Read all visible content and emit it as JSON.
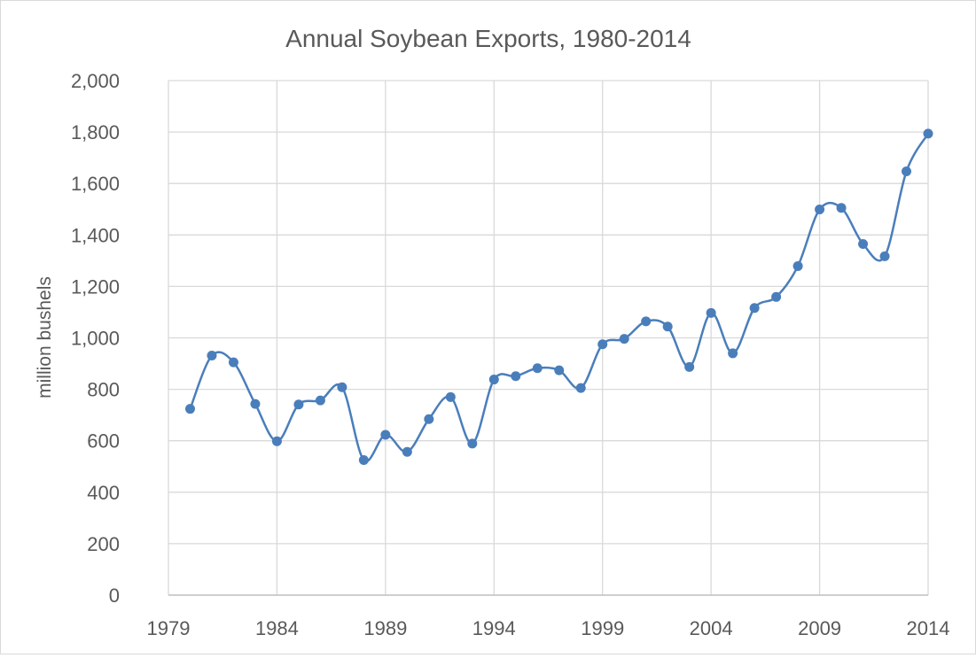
{
  "chart_data": {
    "type": "line",
    "title": "Annual Soybean Exports, 1980-2014",
    "xlabel": "",
    "ylabel": "million bushels",
    "xlim": [
      1979,
      2014
    ],
    "ylim": [
      0,
      2000
    ],
    "x_ticks": [
      "1979",
      "1984",
      "1989",
      "1994",
      "1999",
      "2004",
      "2009",
      "2014"
    ],
    "y_ticks": [
      "0",
      "200",
      "400",
      "600",
      "800",
      "1,000",
      "1,200",
      "1,400",
      "1,600",
      "1,800",
      "2,000"
    ],
    "grid": true,
    "smoothed": true,
    "marker": "circle",
    "color": "#4a7ebb",
    "series": [
      {
        "x": [
          1980,
          1981,
          1982,
          1983,
          1984,
          1985,
          1986,
          1987,
          1988,
          1989,
          1990,
          1991,
          1992,
          1993,
          1994,
          1995,
          1996,
          1997,
          1998,
          1999,
          2000,
          2001,
          2002,
          2003,
          2004,
          2005,
          2006,
          2007,
          2008,
          2009,
          2010,
          2011,
          2012,
          2013,
          2014
        ],
        "values": [
          724,
          931,
          905,
          743,
          598,
          741,
          757,
          808,
          525,
          623,
          557,
          684,
          770,
          589,
          838,
          851,
          882,
          874,
          805,
          975,
          996,
          1064,
          1044,
          887,
          1097,
          940,
          1116,
          1159,
          1279,
          1499,
          1505,
          1365,
          1317,
          1647,
          1794
        ]
      }
    ]
  }
}
